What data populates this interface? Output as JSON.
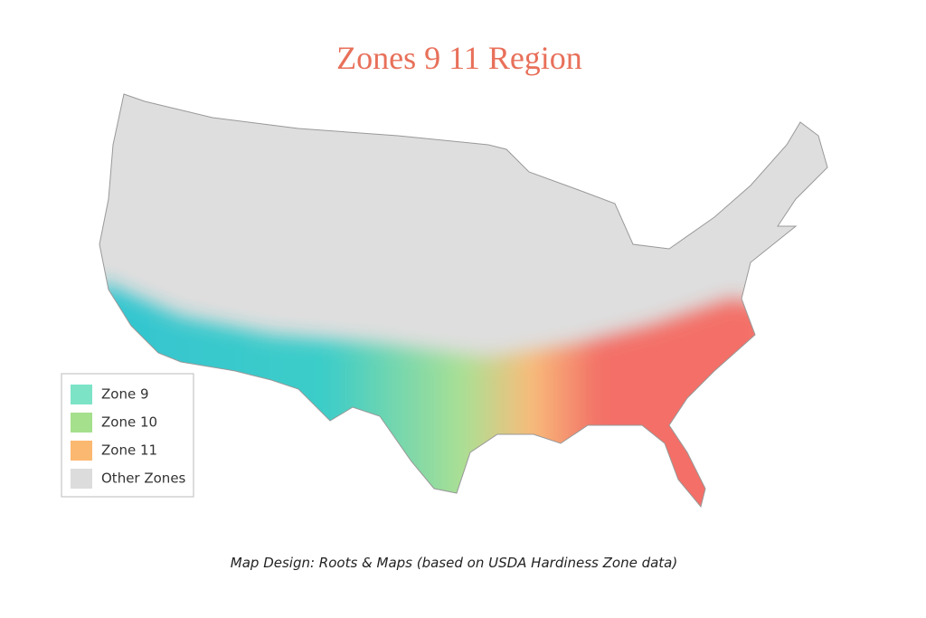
{
  "title": "Zones 9 11 Region",
  "legend": [
    {
      "label": "Zone 9",
      "color": "#7de3c7"
    },
    {
      "label": "Zone 10",
      "color": "#a5e08c"
    },
    {
      "label": "Zone 11",
      "color": "#fbb870"
    },
    {
      "label": "Other Zones",
      "color": "#dcdcdc"
    }
  ],
  "caption": "Map Design: Roots & Maps (based on USDA Hardiness Zone data)"
}
